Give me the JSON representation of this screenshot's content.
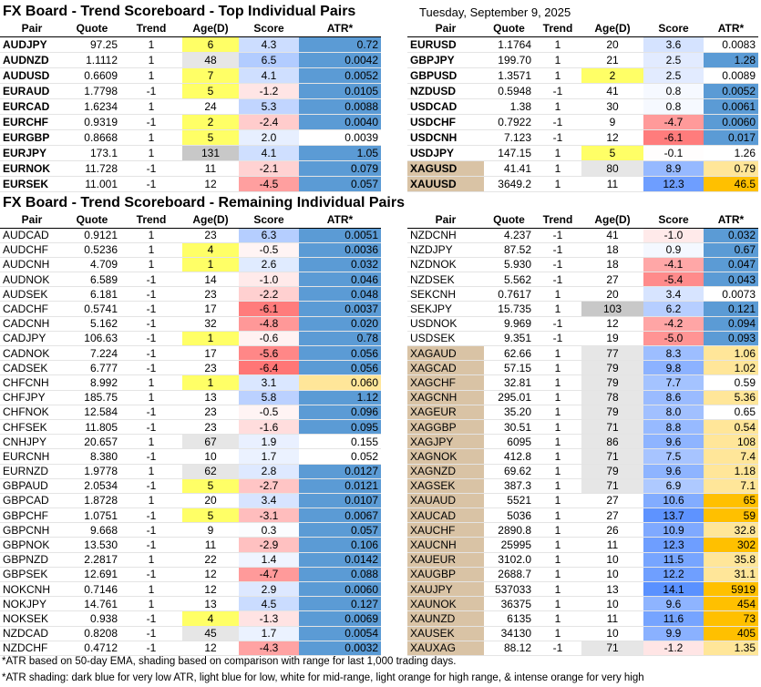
{
  "top_left": {
    "title": "FX Board - Trend Scoreboard - Top Individual Pairs",
    "header": [
      "Pair",
      "Quote",
      "Trend",
      "Age(D)",
      "Score",
      "ATR*"
    ],
    "rows": [
      [
        "AUDJPY",
        "97.25",
        "1",
        "6",
        "4.3",
        "0.72"
      ],
      [
        "AUDNZD",
        "1.1112",
        "1",
        "48",
        "6.5",
        "0.0042"
      ],
      [
        "AUDUSD",
        "0.6609",
        "1",
        "7",
        "4.1",
        "0.0052"
      ],
      [
        "EURAUD",
        "1.7798",
        "-1",
        "5",
        "-1.2",
        "0.0105"
      ],
      [
        "EURCAD",
        "1.6234",
        "1",
        "24",
        "5.3",
        "0.0088"
      ],
      [
        "EURCHF",
        "0.9319",
        "-1",
        "2",
        "-2.4",
        "0.0040"
      ],
      [
        "EURGBP",
        "0.8668",
        "1",
        "5",
        "2.0",
        "0.0039"
      ],
      [
        "EURJPY",
        "173.1",
        "1",
        "131",
        "4.1",
        "1.05"
      ],
      [
        "EURNOK",
        "11.728",
        "-1",
        "11",
        "-2.1",
        "0.079"
      ],
      [
        "EURSEK",
        "11.001",
        "-1",
        "12",
        "-4.5",
        "0.057"
      ]
    ],
    "atr_colors": [
      "#5b9bd5",
      "#5b9bd5",
      "#5b9bd5",
      "#5b9bd5",
      "#5b9bd5",
      "#5b9bd5",
      "#ffffff",
      "#5b9bd5",
      "#5b9bd5",
      "#5b9bd5"
    ]
  },
  "top_right": {
    "date": "Tuesday, September 9, 2025",
    "header": [
      "Pair",
      "Quote",
      "Trend",
      "Age(D)",
      "Score",
      "ATR*"
    ],
    "rows": [
      [
        "EURUSD",
        "1.1764",
        "1",
        "20",
        "3.6",
        "0.0083"
      ],
      [
        "GBPJPY",
        "199.70",
        "1",
        "21",
        "2.5",
        "1.28"
      ],
      [
        "GBPUSD",
        "1.3571",
        "1",
        "2",
        "2.5",
        "0.0089"
      ],
      [
        "NZDUSD",
        "0.5948",
        "-1",
        "41",
        "0.8",
        "0.0052"
      ],
      [
        "USDCAD",
        "1.38",
        "1",
        "30",
        "0.8",
        "0.0061"
      ],
      [
        "USDCHF",
        "0.7922",
        "-1",
        "9",
        "-4.7",
        "0.0060"
      ],
      [
        "USDCNH",
        "7.123",
        "-1",
        "12",
        "-6.1",
        "0.017"
      ],
      [
        "USDJPY",
        "147.15",
        "1",
        "5",
        "-0.1",
        "1.26"
      ],
      [
        "XAGUSD",
        "41.41",
        "1",
        "80",
        "8.9",
        "0.79"
      ],
      [
        "XAUUSD",
        "3649.2",
        "1",
        "11",
        "12.3",
        "46.5"
      ]
    ],
    "atr_colors": [
      "#ffffff",
      "#5b9bd5",
      "#ffffff",
      "#5b9bd5",
      "#5b9bd5",
      "#5b9bd5",
      "#5b9bd5",
      "#ffffff",
      "#ffe699",
      "#ffc000"
    ]
  },
  "bottom_left": {
    "title": "FX Board - Trend Scoreboard - Remaining Individual Pairs",
    "header": [
      "Pair",
      "Quote",
      "Trend",
      "Age(D)",
      "Score",
      "ATR*"
    ],
    "rows": [
      [
        "AUDCAD",
        "0.9121",
        "1",
        "23",
        "6.3",
        "0.0051"
      ],
      [
        "AUDCHF",
        "0.5236",
        "1",
        "4",
        "-0.5",
        "0.0036"
      ],
      [
        "AUDCNH",
        "4.709",
        "1",
        "1",
        "2.6",
        "0.032"
      ],
      [
        "AUDNOK",
        "6.589",
        "-1",
        "14",
        "-1.0",
        "0.046"
      ],
      [
        "AUDSEK",
        "6.181",
        "-1",
        "23",
        "-2.2",
        "0.048"
      ],
      [
        "CADCHF",
        "0.5741",
        "-1",
        "17",
        "-6.1",
        "0.0037"
      ],
      [
        "CADCNH",
        "5.162",
        "-1",
        "32",
        "-4.8",
        "0.020"
      ],
      [
        "CADJPY",
        "106.63",
        "-1",
        "1",
        "-0.6",
        "0.78"
      ],
      [
        "CADNOK",
        "7.224",
        "-1",
        "17",
        "-5.6",
        "0.056"
      ],
      [
        "CADSEK",
        "6.777",
        "-1",
        "23",
        "-6.4",
        "0.056"
      ],
      [
        "CHFCNH",
        "8.992",
        "1",
        "1",
        "3.1",
        "0.060"
      ],
      [
        "CHFJPY",
        "185.75",
        "1",
        "13",
        "5.8",
        "1.12"
      ],
      [
        "CHFNOK",
        "12.584",
        "-1",
        "23",
        "-0.5",
        "0.096"
      ],
      [
        "CHFSEK",
        "11.805",
        "-1",
        "23",
        "-1.6",
        "0.095"
      ],
      [
        "CNHJPY",
        "20.657",
        "1",
        "67",
        "1.9",
        "0.155"
      ],
      [
        "EURCNH",
        "8.380",
        "-1",
        "10",
        "1.7",
        "0.052"
      ],
      [
        "EURNZD",
        "1.9778",
        "1",
        "62",
        "2.8",
        "0.0127"
      ],
      [
        "GBPAUD",
        "2.0534",
        "-1",
        "5",
        "-2.7",
        "0.0121"
      ],
      [
        "GBPCAD",
        "1.8728",
        "1",
        "20",
        "3.4",
        "0.0107"
      ],
      [
        "GBPCHF",
        "1.0751",
        "-1",
        "5",
        "-3.1",
        "0.0067"
      ],
      [
        "GBPCNH",
        "9.668",
        "-1",
        "9",
        "0.3",
        "0.057"
      ],
      [
        "GBPNOK",
        "13.530",
        "-1",
        "11",
        "-2.9",
        "0.106"
      ],
      [
        "GBPNZD",
        "2.2817",
        "1",
        "22",
        "1.4",
        "0.0142"
      ],
      [
        "GBPSEK",
        "12.691",
        "-1",
        "12",
        "-4.7",
        "0.088"
      ],
      [
        "NOKCNH",
        "0.7146",
        "1",
        "12",
        "2.9",
        "0.0060"
      ],
      [
        "NOKJPY",
        "14.761",
        "1",
        "13",
        "4.5",
        "0.127"
      ],
      [
        "NOKSEK",
        "0.938",
        "-1",
        "4",
        "-1.3",
        "0.0069"
      ],
      [
        "NZDCAD",
        "0.8208",
        "-1",
        "45",
        "1.7",
        "0.0054"
      ],
      [
        "NZDCHF",
        "0.4712",
        "-1",
        "12",
        "-4.3",
        "0.0032"
      ]
    ],
    "atr_colors": [
      "#5b9bd5",
      "#5b9bd5",
      "#5b9bd5",
      "#5b9bd5",
      "#5b9bd5",
      "#5b9bd5",
      "#5b9bd5",
      "#5b9bd5",
      "#5b9bd5",
      "#5b9bd5",
      "#ffe699",
      "#5b9bd5",
      "#5b9bd5",
      "#5b9bd5",
      "#ffffff",
      "#ffffff",
      "#5b9bd5",
      "#5b9bd5",
      "#5b9bd5",
      "#5b9bd5",
      "#5b9bd5",
      "#5b9bd5",
      "#5b9bd5",
      "#5b9bd5",
      "#5b9bd5",
      "#5b9bd5",
      "#5b9bd5",
      "#5b9bd5",
      "#5b9bd5"
    ]
  },
  "bottom_right": {
    "header": [
      "Pair",
      "Quote",
      "Trend",
      "Age(D)",
      "Score",
      "ATR*"
    ],
    "rows": [
      [
        "NZDCNH",
        "4.237",
        "-1",
        "41",
        "-1.0",
        "0.032"
      ],
      [
        "NZDJPY",
        "87.52",
        "-1",
        "18",
        "0.9",
        "0.67"
      ],
      [
        "NZDNOK",
        "5.930",
        "-1",
        "18",
        "-4.1",
        "0.047"
      ],
      [
        "NZDSEK",
        "5.562",
        "-1",
        "27",
        "-5.4",
        "0.043"
      ],
      [
        "SEKCNH",
        "0.7617",
        "1",
        "20",
        "3.4",
        "0.0073"
      ],
      [
        "SEKJPY",
        "15.735",
        "1",
        "103",
        "6.2",
        "0.121"
      ],
      [
        "USDNOK",
        "9.969",
        "-1",
        "12",
        "-4.2",
        "0.094"
      ],
      [
        "USDSEK",
        "9.351",
        "-1",
        "19",
        "-5.0",
        "0.093"
      ],
      [
        "XAGAUD",
        "62.66",
        "1",
        "77",
        "8.3",
        "1.06"
      ],
      [
        "XAGCAD",
        "57.15",
        "1",
        "79",
        "9.8",
        "1.02"
      ],
      [
        "XAGCHF",
        "32.81",
        "1",
        "79",
        "7.7",
        "0.59"
      ],
      [
        "XAGCNH",
        "295.01",
        "1",
        "78",
        "8.6",
        "5.36"
      ],
      [
        "XAGEUR",
        "35.20",
        "1",
        "79",
        "8.0",
        "0.65"
      ],
      [
        "XAGGBP",
        "30.51",
        "1",
        "71",
        "8.8",
        "0.54"
      ],
      [
        "XAGJPY",
        "6095",
        "1",
        "86",
        "9.6",
        "108"
      ],
      [
        "XAGNOK",
        "412.8",
        "1",
        "71",
        "7.5",
        "7.4"
      ],
      [
        "XAGNZD",
        "69.62",
        "1",
        "79",
        "9.6",
        "1.18"
      ],
      [
        "XAGSEK",
        "387.3",
        "1",
        "71",
        "6.9",
        "7.1"
      ],
      [
        "XAUAUD",
        "5521",
        "1",
        "27",
        "10.6",
        "65"
      ],
      [
        "XAUCAD",
        "5036",
        "1",
        "27",
        "13.7",
        "59"
      ],
      [
        "XAUCHF",
        "2890.8",
        "1",
        "26",
        "10.9",
        "32.8"
      ],
      [
        "XAUCNH",
        "25995",
        "1",
        "11",
        "12.3",
        "302"
      ],
      [
        "XAUEUR",
        "3102.0",
        "1",
        "10",
        "11.5",
        "35.8"
      ],
      [
        "XAUGBP",
        "2688.7",
        "1",
        "10",
        "12.2",
        "31.1"
      ],
      [
        "XAUJPY",
        "537033",
        "1",
        "13",
        "14.1",
        "5919"
      ],
      [
        "XAUNOK",
        "36375",
        "1",
        "10",
        "9.6",
        "454"
      ],
      [
        "XAUNZD",
        "6135",
        "1",
        "11",
        "11.6",
        "73"
      ],
      [
        "XAUSEK",
        "34130",
        "1",
        "10",
        "9.9",
        "405"
      ],
      [
        "XAUXAG",
        "88.12",
        "-1",
        "71",
        "-1.2",
        "1.35"
      ]
    ],
    "atr_colors": [
      "#5b9bd5",
      "#5b9bd5",
      "#5b9bd5",
      "#5b9bd5",
      "#ffffff",
      "#5b9bd5",
      "#5b9bd5",
      "#5b9bd5",
      "#ffe699",
      "#ffe699",
      "#ffffff",
      "#ffe699",
      "#ffffff",
      "#ffe699",
      "#ffe699",
      "#ffe699",
      "#ffe699",
      "#ffe699",
      "#ffc000",
      "#ffc000",
      "#ffe699",
      "#ffc000",
      "#ffe699",
      "#ffe699",
      "#ffc000",
      "#ffc000",
      "#ffc000",
      "#ffc000",
      "#ffe699"
    ]
  },
  "footnotes": [
    "*ATR based on 50-day EMA, shading based on comparison with range for last 1,000 trading days.",
    "*ATR shading: dark blue for very low ATR, light blue for low, white for mid-range, light orange for high range, & intense orange for very high"
  ]
}
